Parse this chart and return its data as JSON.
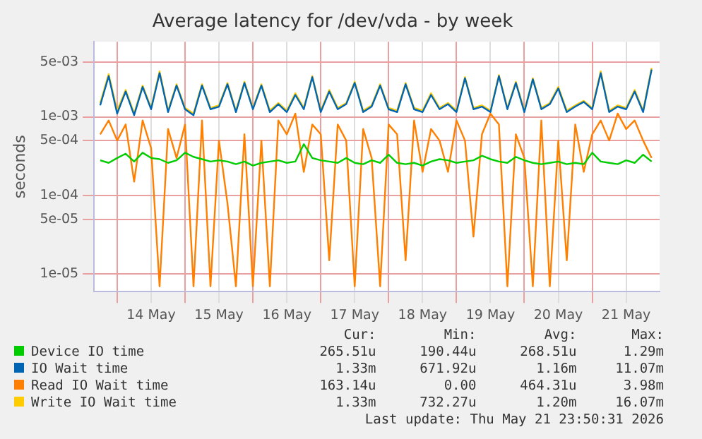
{
  "chart_data": {
    "type": "line",
    "title": "Average latency for /dev/vda - by week",
    "ylabel": "seconds",
    "log": "y",
    "grid": true,
    "legend": "bottom",
    "marker": "none",
    "line_style": "solid",
    "x": [
      "2026-05-13T18:00",
      "2026-05-13T21:00",
      "2026-05-14T00:00",
      "2026-05-14T03:00",
      "2026-05-14T06:00",
      "2026-05-14T09:00",
      "2026-05-14T12:00",
      "2026-05-14T15:00",
      "2026-05-14T18:00",
      "2026-05-14T21:00",
      "2026-05-15T00:00",
      "2026-05-15T03:00",
      "2026-05-15T06:00",
      "2026-05-15T09:00",
      "2026-05-15T12:00",
      "2026-05-15T15:00",
      "2026-05-15T18:00",
      "2026-05-15T21:00",
      "2026-05-16T00:00",
      "2026-05-16T03:00",
      "2026-05-16T06:00",
      "2026-05-16T09:00",
      "2026-05-16T12:00",
      "2026-05-16T15:00",
      "2026-05-16T18:00",
      "2026-05-16T21:00",
      "2026-05-17T00:00",
      "2026-05-17T03:00",
      "2026-05-17T06:00",
      "2026-05-17T09:00",
      "2026-05-17T12:00",
      "2026-05-17T15:00",
      "2026-05-17T18:00",
      "2026-05-17T21:00",
      "2026-05-18T00:00",
      "2026-05-18T03:00",
      "2026-05-18T06:00",
      "2026-05-18T09:00",
      "2026-05-18T12:00",
      "2026-05-18T15:00",
      "2026-05-18T18:00",
      "2026-05-18T21:00",
      "2026-05-19T00:00",
      "2026-05-19T03:00",
      "2026-05-19T06:00",
      "2026-05-19T09:00",
      "2026-05-19T12:00",
      "2026-05-19T15:00",
      "2026-05-19T18:00",
      "2026-05-19T21:00",
      "2026-05-20T00:00",
      "2026-05-20T03:00",
      "2026-05-20T06:00",
      "2026-05-20T09:00",
      "2026-05-20T12:00",
      "2026-05-20T15:00",
      "2026-05-20T18:00",
      "2026-05-20T21:00",
      "2026-05-21T00:00",
      "2026-05-21T03:00",
      "2026-05-21T06:00",
      "2026-05-21T09:00",
      "2026-05-21T12:00",
      "2026-05-21T15:00",
      "2026-05-21T18:00",
      "2026-05-21T21:00"
    ],
    "xlim": [
      "2026-05-13T15:50",
      "2026-05-21T23:50"
    ],
    "xticks": [
      {
        "value": "2026-05-14T00:00",
        "label": null
      },
      {
        "value": "2026-05-14T12:00",
        "label": "14 May"
      },
      {
        "value": "2026-05-15T00:00",
        "label": null
      },
      {
        "value": "2026-05-15T12:00",
        "label": "15 May"
      },
      {
        "value": "2026-05-16T00:00",
        "label": null
      },
      {
        "value": "2026-05-16T12:00",
        "label": "16 May"
      },
      {
        "value": "2026-05-17T00:00",
        "label": null
      },
      {
        "value": "2026-05-17T12:00",
        "label": "17 May"
      },
      {
        "value": "2026-05-18T00:00",
        "label": null
      },
      {
        "value": "2026-05-18T12:00",
        "label": "18 May"
      },
      {
        "value": "2026-05-19T00:00",
        "label": null
      },
      {
        "value": "2026-05-19T12:00",
        "label": "19 May"
      },
      {
        "value": "2026-05-20T00:00",
        "label": null
      },
      {
        "value": "2026-05-20T12:00",
        "label": "20 May"
      },
      {
        "value": "2026-05-21T00:00",
        "label": null
      },
      {
        "value": "2026-05-21T12:00",
        "label": "21 May"
      }
    ],
    "ylim": [
      6e-06,
      0.009
    ],
    "yticks": [
      {
        "value": 1e-05,
        "label": "1e-05"
      },
      {
        "value": 5e-05,
        "label": "5e-05"
      },
      {
        "value": 0.0001,
        "label": "1e-04"
      },
      {
        "value": 0.0005,
        "label": "5e-04"
      },
      {
        "value": 0.001,
        "label": "1e-03"
      },
      {
        "value": 0.005,
        "label": "5e-03"
      }
    ],
    "series": [
      {
        "name": "Device IO time",
        "color": "#00cc00",
        "values": [
          0.00028,
          0.00026,
          0.0003,
          0.00034,
          0.00027,
          0.00035,
          0.0003,
          0.00029,
          0.00026,
          0.00028,
          0.00035,
          0.00031,
          0.00029,
          0.00027,
          0.00028,
          0.00027,
          0.00025,
          0.00027,
          0.00024,
          0.00026,
          0.00027,
          0.00028,
          0.00026,
          0.00027,
          0.00045,
          0.0003,
          0.00028,
          0.00027,
          0.00026,
          0.0003,
          0.00026,
          0.00025,
          0.00028,
          0.00026,
          0.00033,
          0.00026,
          0.00025,
          0.00026,
          0.00024,
          0.00027,
          0.00029,
          0.00028,
          0.00026,
          0.00027,
          0.00028,
          0.00032,
          0.00029,
          0.00027,
          0.00026,
          0.00031,
          0.00028,
          0.00026,
          0.00025,
          0.00026,
          0.00027,
          0.00025,
          0.00026,
          0.00025,
          0.00035,
          0.00027,
          0.00026,
          0.00025,
          0.00028,
          0.00026,
          0.00033,
          0.00027
        ]
      },
      {
        "name": "IO Wait time",
        "color": "#0066b3",
        "values": [
          0.0014,
          0.0033,
          0.0011,
          0.0021,
          0.00105,
          0.0024,
          0.00125,
          0.0036,
          0.00115,
          0.0025,
          0.00125,
          0.00105,
          0.0025,
          0.00125,
          0.00135,
          0.0026,
          0.00115,
          0.0027,
          0.00125,
          0.0025,
          0.00115,
          0.00145,
          0.00115,
          0.0019,
          0.00125,
          0.0032,
          0.00115,
          0.0021,
          0.00125,
          0.00145,
          0.0027,
          0.00115,
          0.00135,
          0.0025,
          0.00125,
          0.00115,
          0.0026,
          0.00125,
          0.00115,
          0.0019,
          0.00125,
          0.00145,
          0.00115,
          0.0031,
          0.00125,
          0.00135,
          0.00115,
          0.0033,
          0.00125,
          0.0027,
          0.00115,
          0.003,
          0.00125,
          0.00145,
          0.0023,
          0.00115,
          0.00135,
          0.00155,
          0.00125,
          0.0036,
          0.00115,
          0.00135,
          0.00125,
          0.0021,
          0.00115,
          0.004
        ]
      },
      {
        "name": "Read IO Wait time",
        "color": "#ff8000",
        "values": [
          0.0006,
          0.0009,
          0.0005,
          0.0008,
          0.00015,
          0.0009,
          0.0004,
          7e-06,
          0.0007,
          0.0003,
          0.0008,
          7e-06,
          0.0009,
          7e-06,
          0.0005,
          8e-05,
          7e-06,
          0.0006,
          7e-06,
          0.0005,
          7e-06,
          0.0009,
          0.0006,
          0.0011,
          0.0002,
          0.0008,
          0.0006,
          1.5e-05,
          0.0008,
          0.0005,
          7e-06,
          0.0007,
          0.0003,
          7e-06,
          0.0008,
          0.0006,
          1.5e-05,
          0.0009,
          0.0002,
          0.0007,
          0.0005,
          0.0002,
          0.0009,
          0.0005,
          3e-05,
          0.0006,
          0.0011,
          0.0008,
          7e-06,
          0.0006,
          0.0003,
          7e-06,
          0.0009,
          7e-06,
          0.0005,
          1.5e-05,
          0.0008,
          0.0002,
          0.0006,
          0.0009,
          0.0005,
          0.0011,
          0.0007,
          0.0009,
          0.0005,
          0.0003
        ]
      },
      {
        "name": "Write IO Wait time",
        "color": "#ffcc00",
        "values": [
          0.0015,
          0.0035,
          0.0012,
          0.0022,
          0.0011,
          0.0025,
          0.0013,
          0.0038,
          0.0012,
          0.0026,
          0.0013,
          0.0011,
          0.0026,
          0.0013,
          0.0014,
          0.0027,
          0.0012,
          0.0028,
          0.0013,
          0.0026,
          0.0012,
          0.0015,
          0.0012,
          0.002,
          0.0013,
          0.0033,
          0.0012,
          0.0022,
          0.0013,
          0.0015,
          0.0028,
          0.0012,
          0.0014,
          0.0026,
          0.0013,
          0.0012,
          0.0027,
          0.0013,
          0.0012,
          0.002,
          0.0013,
          0.0015,
          0.0012,
          0.0032,
          0.0013,
          0.0014,
          0.0012,
          0.0034,
          0.0013,
          0.0028,
          0.0012,
          0.0031,
          0.0013,
          0.0015,
          0.0024,
          0.0012,
          0.0014,
          0.0016,
          0.0013,
          0.0038,
          0.0012,
          0.0014,
          0.0013,
          0.0022,
          0.0012,
          0.0042
        ]
      }
    ],
    "annotations": [
      "Cur:",
      "Min:",
      "Avg:",
      "Max:",
      "265.51u",
      "190.44u",
      "268.51u",
      "1.29m",
      "1.33m",
      "671.92u",
      "1.16m",
      "11.07m",
      "163.14u",
      "0.00",
      "464.31u",
      "3.98m",
      "1.33m",
      "732.27u",
      "1.20m",
      "16.07m",
      "Last update: Thu May 21 23:50:31 2026"
    ]
  }
}
